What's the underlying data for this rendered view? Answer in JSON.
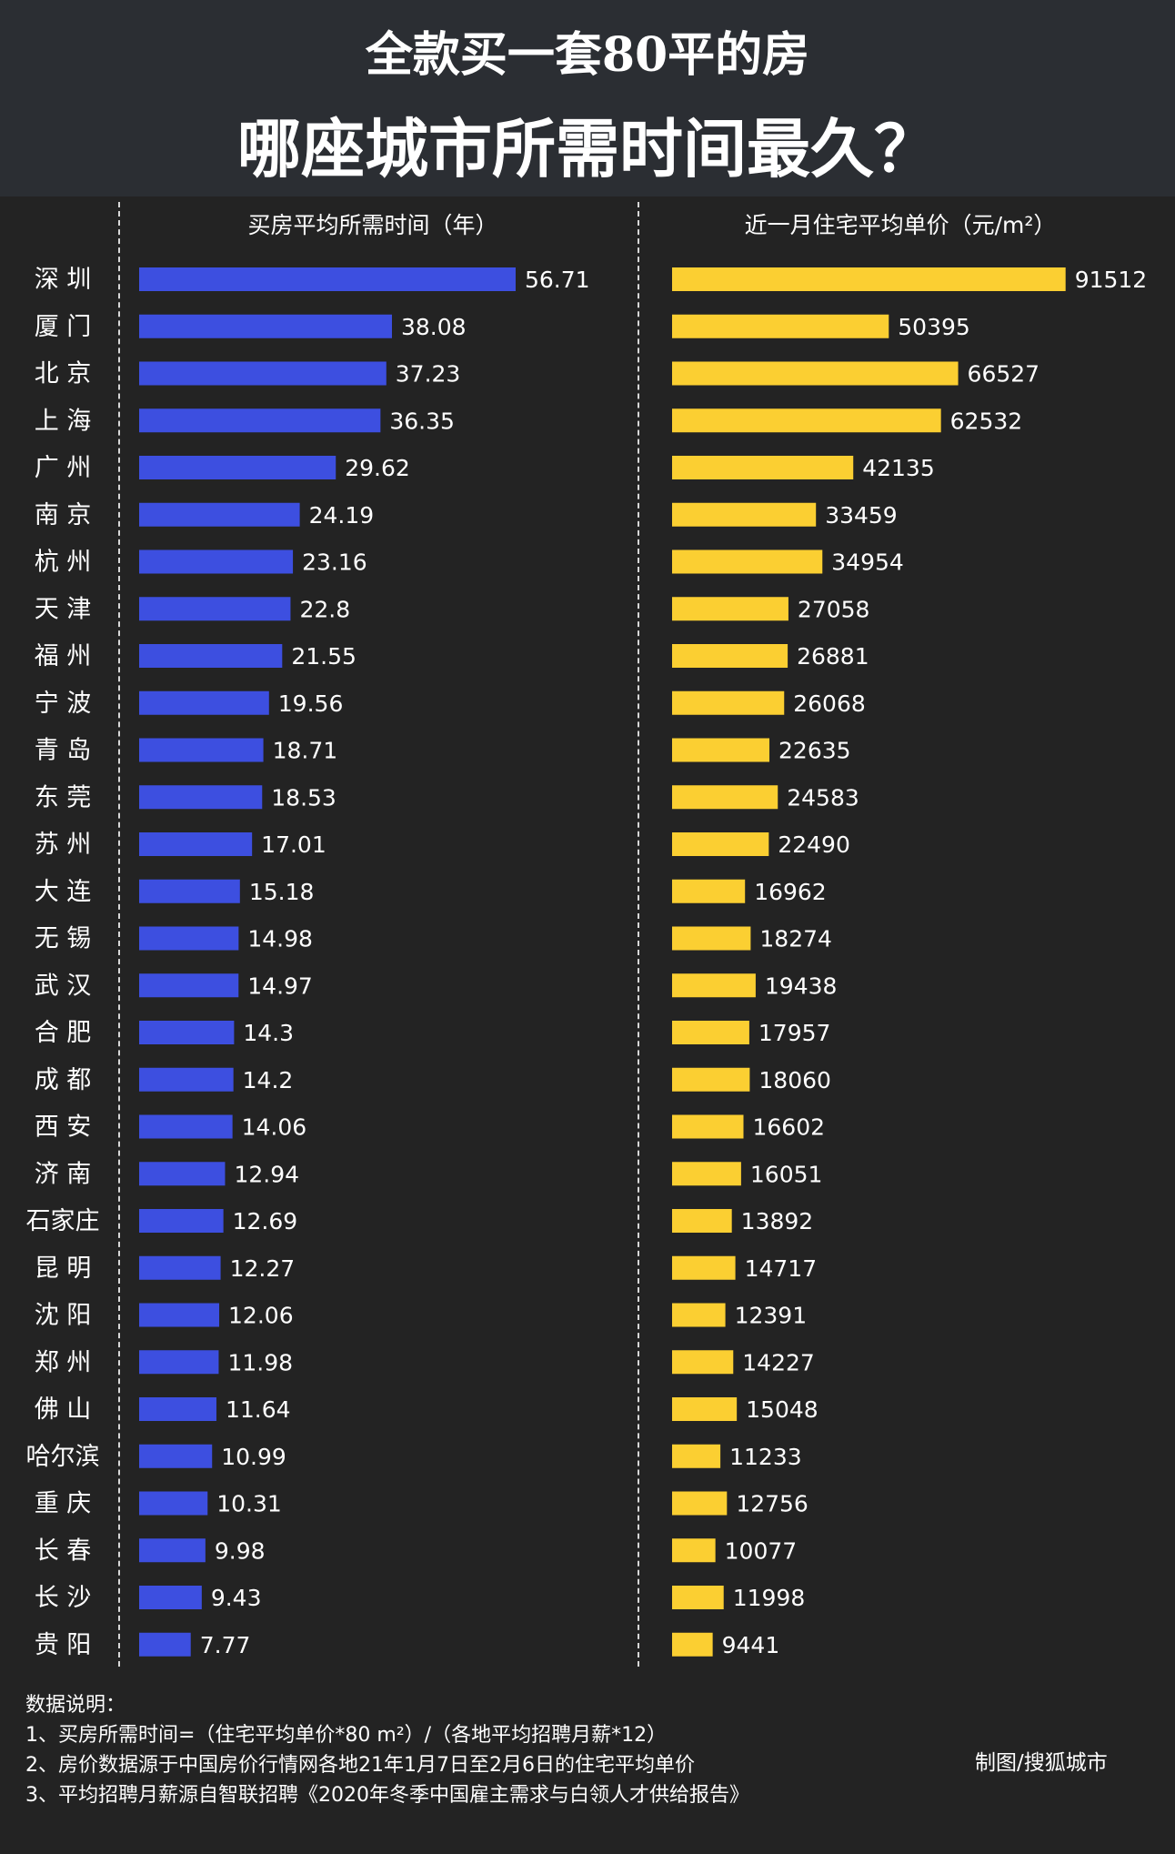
{
  "header": {
    "title_line1": "全款买一套80平的房",
    "title_line2": "哪座城市所需时间最久？"
  },
  "left_panel": {
    "title": "买房平均所需时间（年）"
  },
  "right_panel": {
    "title": "近一月住宅平均单价（元/m²）"
  },
  "colors": {
    "years_bar": "#3d4fe0",
    "price_bar": "#fbcf32",
    "background": "#232323",
    "header": "#2b2e33"
  },
  "chart_data": [
    {
      "type": "bar",
      "orientation": "horizontal",
      "title": "买房平均所需时间（年）",
      "categories": [
        "深 圳",
        "厦 门",
        "北 京",
        "上 海",
        "广 州",
        "南 京",
        "杭 州",
        "天 津",
        "福 州",
        "宁 波",
        "青 岛",
        "东 莞",
        "苏 州",
        "大 连",
        "无 锡",
        "武 汉",
        "合 肥",
        "成 都",
        "西 安",
        "济 南",
        "石家庄",
        "昆 明",
        "沈 阳",
        "郑 州",
        "佛 山",
        "哈尔滨",
        "重 庆",
        "长 春",
        "长 沙",
        "贵 阳"
      ],
      "values": [
        56.71,
        38.08,
        37.23,
        36.35,
        29.62,
        24.19,
        23.16,
        22.8,
        21.55,
        19.56,
        18.71,
        18.53,
        17.01,
        15.18,
        14.98,
        14.97,
        14.3,
        14.2,
        14.06,
        12.94,
        12.69,
        12.27,
        12.06,
        11.98,
        11.64,
        10.99,
        10.31,
        9.98,
        9.43,
        7.77
      ],
      "value_labels": [
        "56.71",
        "38.08",
        "37.23",
        "36.35",
        "29.62",
        "24.19",
        "23.16",
        "22.8",
        "21.55",
        "19.56",
        "18.71",
        "18.53",
        "17.01",
        "15.18",
        "14.98",
        "14.97",
        "14.3",
        "14.2",
        "14.06",
        "12.94",
        "12.69",
        "12.27",
        "12.06",
        "11.98",
        "11.64",
        "10.99",
        "10.31",
        "9.98",
        "9.43",
        "7.77"
      ],
      "xlim": [
        0,
        60
      ],
      "grid": false
    },
    {
      "type": "bar",
      "orientation": "horizontal",
      "title": "近一月住宅平均单价（元/m²）",
      "categories": [
        "深 圳",
        "厦 门",
        "北 京",
        "上 海",
        "广 州",
        "南 京",
        "杭 州",
        "天 津",
        "福 州",
        "宁 波",
        "青 岛",
        "东 莞",
        "苏 州",
        "大 连",
        "无 锡",
        "武 汉",
        "合 肥",
        "成 都",
        "西 安",
        "济 南",
        "石家庄",
        "昆 明",
        "沈 阳",
        "郑 州",
        "佛 山",
        "哈尔滨",
        "重 庆",
        "长 春",
        "长 沙",
        "贵 阳"
      ],
      "values": [
        91512,
        50395,
        66527,
        62532,
        42135,
        33459,
        34954,
        27058,
        26881,
        26068,
        22635,
        24583,
        22490,
        16962,
        18274,
        19438,
        17957,
        18060,
        16602,
        16051,
        13892,
        14717,
        12391,
        14227,
        15048,
        11233,
        12756,
        10077,
        11998,
        9441
      ],
      "value_labels": [
        "91512",
        "50395",
        "66527",
        "62532",
        "42135",
        "33459",
        "34954",
        "27058",
        "26881",
        "26068",
        "22635",
        "24583",
        "22490",
        "16962",
        "18274",
        "19438",
        "17957",
        "18060",
        "16602",
        "16051",
        "13892",
        "14717",
        "12391",
        "14227",
        "15048",
        "11233",
        "12756",
        "10077",
        "11998",
        "9441"
      ],
      "xlim": [
        0,
        92000
      ],
      "grid": false
    }
  ],
  "notes": {
    "heading": "数据说明：",
    "lines": [
      "1、买房所需时间=（住宅平均单价*80 m²）/（各地平均招聘月薪*12）",
      "2、房价数据源于中国房价行情网各地21年1月7日至2月6日的住宅平均单价",
      "3、平均招聘月薪源自智联招聘《2020年冬季中国雇主需求与白领人才供给报告》"
    ]
  },
  "credit": "制图/搜狐城市"
}
